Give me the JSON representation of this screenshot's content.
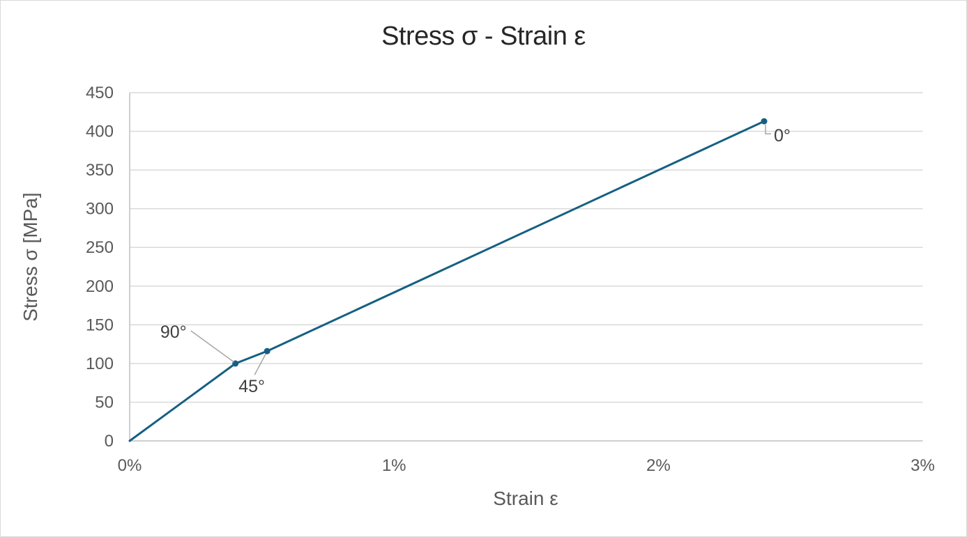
{
  "window": {
    "background": "#ffffff",
    "border_color": "#d9d9d9"
  },
  "chart_data": {
    "type": "line",
    "title": "Stress σ - Strain ε",
    "xlabel": "Strain ε",
    "ylabel": "Stress σ [MPa]",
    "x_unit": "%",
    "y_unit": "MPa",
    "xlim": [
      0,
      3
    ],
    "ylim": [
      0,
      450
    ],
    "x_ticks": [
      {
        "value": 0,
        "label": "0%"
      },
      {
        "value": 1,
        "label": "1%"
      },
      {
        "value": 2,
        "label": "2%"
      },
      {
        "value": 3,
        "label": "3%"
      }
    ],
    "y_ticks": [
      {
        "value": 0,
        "label": "0"
      },
      {
        "value": 50,
        "label": "50"
      },
      {
        "value": 100,
        "label": "100"
      },
      {
        "value": 150,
        "label": "150"
      },
      {
        "value": 200,
        "label": "200"
      },
      {
        "value": 250,
        "label": "250"
      },
      {
        "value": 300,
        "label": "300"
      },
      {
        "value": 350,
        "label": "350"
      },
      {
        "value": 400,
        "label": "400"
      },
      {
        "value": 450,
        "label": "450"
      }
    ],
    "grid": {
      "horizontal": true,
      "vertical": false
    },
    "legend": "none",
    "series": [
      {
        "name": "stress-strain-curve",
        "color": "#156082",
        "points": [
          [
            0,
            0
          ],
          [
            0.4,
            100
          ],
          [
            0.52,
            116
          ],
          [
            2.4,
            413
          ]
        ],
        "marker_points": [
          [
            0.4,
            100
          ],
          [
            0.52,
            116
          ],
          [
            2.4,
            413
          ]
        ]
      }
    ],
    "annotations": [
      {
        "label": "90°",
        "x": 0.4,
        "y": 100
      },
      {
        "label": "45°",
        "x": 0.52,
        "y": 116
      },
      {
        "label": "0°",
        "x": 2.4,
        "y": 413
      }
    ]
  },
  "styles": {
    "title_color": "#262626",
    "axis_text_color": "#595959",
    "annotation_color": "#404040",
    "gridline_color": "#d9d9d9",
    "axis_line_color": "#bfbfbf",
    "leader_line_color": "#a6a6a6",
    "series_color": "#156082"
  }
}
